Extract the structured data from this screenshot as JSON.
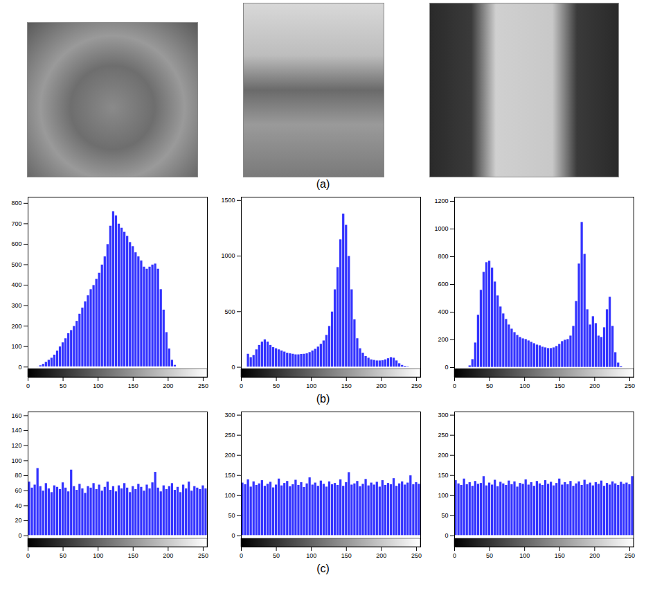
{
  "panel_labels": [
    "(a)",
    "(b)",
    "(c)"
  ],
  "chart_data": [
    {
      "type": "histogram",
      "color": "#3333ff",
      "bins": [
        0,
        4,
        8,
        12,
        16,
        20,
        24,
        28,
        32,
        36,
        40,
        44,
        48,
        52,
        56,
        60,
        64,
        68,
        72,
        76,
        80,
        84,
        88,
        92,
        96,
        100,
        104,
        108,
        112,
        116,
        120,
        124,
        128,
        132,
        136,
        140,
        144,
        148,
        152,
        156,
        160,
        164,
        168,
        172,
        176,
        180,
        184,
        188,
        192,
        196,
        200,
        204,
        208,
        212,
        216,
        220,
        224,
        228,
        232,
        236,
        240,
        244,
        248,
        252,
        256
      ],
      "values": [
        0,
        0,
        1,
        3,
        8,
        15,
        25,
        35,
        45,
        60,
        80,
        100,
        120,
        140,
        165,
        180,
        200,
        225,
        260,
        290,
        320,
        350,
        380,
        400,
        430,
        460,
        500,
        540,
        600,
        690,
        760,
        740,
        700,
        680,
        660,
        640,
        610,
        590,
        560,
        540,
        520,
        490,
        480,
        490,
        500,
        505,
        480,
        380,
        280,
        170,
        90,
        35,
        10,
        2,
        0,
        0,
        0,
        0,
        0,
        0,
        0,
        0,
        0,
        0
      ],
      "xlim": [
        0,
        256
      ],
      "xticks": [
        0,
        50,
        100,
        150,
        200,
        250
      ],
      "ylim": [
        -50,
        830
      ],
      "yticks": [
        0,
        100,
        200,
        300,
        400,
        500,
        600,
        700,
        800
      ]
    },
    {
      "type": "histogram",
      "color": "#3333ff",
      "bins": [
        0,
        4,
        8,
        12,
        16,
        20,
        24,
        28,
        32,
        36,
        40,
        44,
        48,
        52,
        56,
        60,
        64,
        68,
        72,
        76,
        80,
        84,
        88,
        92,
        96,
        100,
        104,
        108,
        112,
        116,
        120,
        124,
        128,
        132,
        136,
        140,
        144,
        148,
        152,
        156,
        160,
        164,
        168,
        172,
        176,
        180,
        184,
        188,
        192,
        196,
        200,
        204,
        208,
        212,
        216,
        220,
        224,
        228,
        232,
        236,
        240,
        244,
        248,
        252,
        256
      ],
      "values": [
        0,
        0,
        120,
        90,
        110,
        160,
        200,
        230,
        250,
        230,
        200,
        180,
        170,
        160,
        150,
        140,
        130,
        125,
        120,
        115,
        115,
        118,
        120,
        125,
        135,
        150,
        165,
        185,
        210,
        240,
        290,
        370,
        500,
        700,
        900,
        1150,
        1380,
        1280,
        1000,
        700,
        430,
        260,
        170,
        130,
        100,
        85,
        70,
        65,
        60,
        60,
        62,
        70,
        80,
        90,
        85,
        60,
        35,
        20,
        12,
        8,
        5,
        3,
        1,
        0
      ],
      "xlim": [
        0,
        256
      ],
      "xticks": [
        0,
        50,
        100,
        150,
        200,
        250
      ],
      "ylim": [
        -90,
        1530
      ],
      "yticks": [
        0,
        500,
        1000,
        1500
      ]
    },
    {
      "type": "histogram",
      "color": "#3333ff",
      "bins": [
        0,
        4,
        8,
        12,
        16,
        20,
        24,
        28,
        32,
        36,
        40,
        44,
        48,
        52,
        56,
        60,
        64,
        68,
        72,
        76,
        80,
        84,
        88,
        92,
        96,
        100,
        104,
        108,
        112,
        116,
        120,
        124,
        128,
        132,
        136,
        140,
        144,
        148,
        152,
        156,
        160,
        164,
        168,
        172,
        176,
        180,
        184,
        188,
        192,
        196,
        200,
        204,
        208,
        212,
        216,
        220,
        224,
        228,
        232,
        236,
        240,
        244,
        248,
        252,
        256
      ],
      "values": [
        0,
        0,
        0,
        1,
        3,
        15,
        60,
        180,
        380,
        560,
        690,
        760,
        770,
        720,
        620,
        520,
        440,
        390,
        350,
        310,
        280,
        255,
        235,
        220,
        210,
        205,
        195,
        185,
        175,
        165,
        160,
        150,
        145,
        140,
        140,
        145,
        155,
        170,
        190,
        200,
        205,
        230,
        300,
        480,
        750,
        1050,
        820,
        420,
        310,
        370,
        320,
        230,
        220,
        290,
        420,
        510,
        300,
        110,
        35,
        10,
        3,
        1,
        0,
        0
      ],
      "xlim": [
        0,
        256
      ],
      "xticks": [
        0,
        50,
        100,
        150,
        200,
        250
      ],
      "ylim": [
        -70,
        1230
      ],
      "yticks": [
        0,
        200,
        400,
        600,
        800,
        1000,
        1200
      ]
    },
    {
      "type": "histogram",
      "color": "#3333ff",
      "bins": [
        0,
        4,
        8,
        12,
        16,
        20,
        24,
        28,
        32,
        36,
        40,
        44,
        48,
        52,
        56,
        60,
        64,
        68,
        72,
        76,
        80,
        84,
        88,
        92,
        96,
        100,
        104,
        108,
        112,
        116,
        120,
        124,
        128,
        132,
        136,
        140,
        144,
        148,
        152,
        156,
        160,
        164,
        168,
        172,
        176,
        180,
        184,
        188,
        192,
        196,
        200,
        204,
        208,
        212,
        216,
        220,
        224,
        228,
        232,
        236,
        240,
        244,
        248,
        252,
        256
      ],
      "values": [
        72,
        64,
        68,
        90,
        66,
        60,
        70,
        63,
        58,
        67,
        65,
        62,
        71,
        64,
        59,
        88,
        66,
        61,
        69,
        63,
        57,
        66,
        64,
        70,
        62,
        68,
        60,
        65,
        72,
        61,
        66,
        59,
        67,
        63,
        70,
        64,
        58,
        66,
        62,
        69,
        65,
        60,
        68,
        63,
        71,
        85,
        64,
        59,
        67,
        62,
        66,
        70,
        61,
        65,
        58,
        68,
        63,
        72,
        60,
        66,
        64,
        62,
        67,
        63
      ],
      "xlim": [
        0,
        256
      ],
      "xticks": [
        0,
        50,
        100,
        150,
        200,
        250
      ],
      "ylim": [
        -15,
        165
      ],
      "yticks": [
        0,
        20,
        40,
        60,
        80,
        100,
        120,
        140,
        160
      ]
    },
    {
      "type": "histogram",
      "color": "#3333ff",
      "bins": [
        0,
        4,
        8,
        12,
        16,
        20,
        24,
        28,
        32,
        36,
        40,
        44,
        48,
        52,
        56,
        60,
        64,
        68,
        72,
        76,
        80,
        84,
        88,
        92,
        96,
        100,
        104,
        108,
        112,
        116,
        120,
        124,
        128,
        132,
        136,
        140,
        144,
        148,
        152,
        156,
        160,
        164,
        168,
        172,
        176,
        180,
        184,
        188,
        192,
        196,
        200,
        204,
        208,
        212,
        216,
        220,
        224,
        228,
        232,
        236,
        240,
        244,
        248,
        252,
        256
      ],
      "values": [
        132,
        128,
        140,
        122,
        135,
        126,
        130,
        138,
        124,
        129,
        134,
        120,
        127,
        142,
        125,
        131,
        136,
        123,
        128,
        139,
        126,
        133,
        121,
        130,
        145,
        127,
        132,
        124,
        137,
        129,
        122,
        135,
        128,
        131,
        126,
        140,
        124,
        133,
        158,
        127,
        130,
        136,
        123,
        129,
        141,
        125,
        132,
        127,
        134,
        122,
        138,
        126,
        131,
        128,
        143,
        124,
        130,
        135,
        127,
        132,
        150,
        128,
        133,
        129
      ],
      "xlim": [
        0,
        256
      ],
      "xticks": [
        0,
        50,
        100,
        150,
        200,
        250
      ],
      "ylim": [
        -28,
        308
      ],
      "yticks": [
        0,
        50,
        100,
        150,
        200,
        250,
        300
      ]
    },
    {
      "type": "histogram",
      "color": "#3333ff",
      "bins": [
        0,
        4,
        8,
        12,
        16,
        20,
        24,
        28,
        32,
        36,
        40,
        44,
        48,
        52,
        56,
        60,
        64,
        68,
        72,
        76,
        80,
        84,
        88,
        92,
        96,
        100,
        104,
        108,
        112,
        116,
        120,
        124,
        128,
        132,
        136,
        140,
        144,
        148,
        152,
        156,
        160,
        164,
        168,
        172,
        176,
        180,
        184,
        188,
        192,
        196,
        200,
        204,
        208,
        212,
        216,
        220,
        224,
        228,
        232,
        236,
        240,
        244,
        248,
        252,
        256
      ],
      "values": [
        138,
        130,
        126,
        142,
        128,
        133,
        124,
        136,
        129,
        131,
        148,
        125,
        132,
        127,
        139,
        123,
        134,
        130,
        126,
        137,
        128,
        135,
        122,
        131,
        129,
        140,
        127,
        133,
        124,
        136,
        130,
        126,
        138,
        129,
        134,
        125,
        131,
        142,
        127,
        133,
        128,
        136,
        124,
        130,
        135,
        126,
        139,
        128,
        132,
        125,
        133,
        129,
        137,
        124,
        131,
        127,
        135,
        130,
        126,
        134,
        129,
        132,
        128,
        148
      ],
      "xlim": [
        0,
        256
      ],
      "xticks": [
        0,
        50,
        100,
        150,
        200,
        250
      ],
      "ylim": [
        -28,
        308
      ],
      "yticks": [
        0,
        50,
        100,
        150,
        200,
        250,
        300
      ]
    }
  ]
}
